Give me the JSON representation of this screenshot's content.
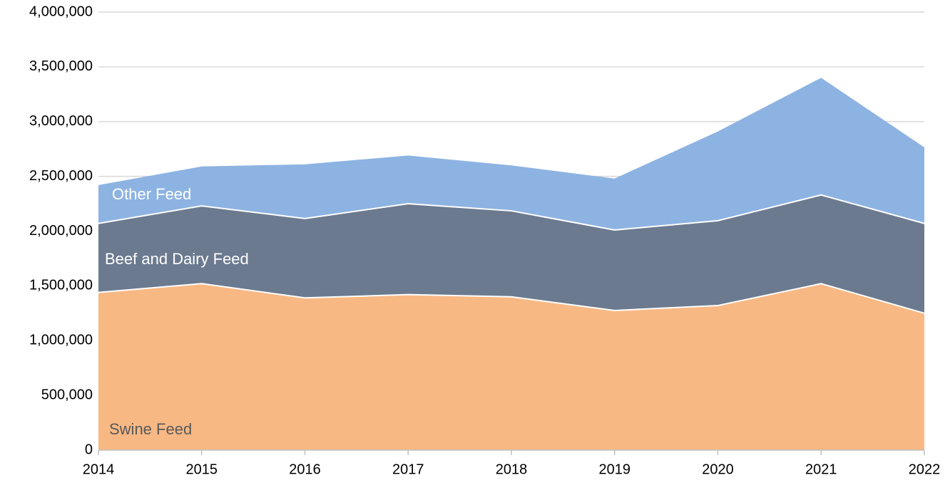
{
  "chart_data": {
    "type": "stacked_area",
    "categories": [
      "2014",
      "2015",
      "2016",
      "2017",
      "2018",
      "2019",
      "2020",
      "2021",
      "2022"
    ],
    "series": [
      {
        "name": "Swine Feed",
        "color": "#f8b884",
        "label_color": "#595959",
        "values": [
          1440000,
          1520000,
          1390000,
          1420000,
          1400000,
          1275000,
          1320000,
          1520000,
          1250000
        ]
      },
      {
        "name": "Beef and Dairy Feed",
        "color": "#6b7a8f",
        "label_color": "#ffffff",
        "values": [
          630000,
          710000,
          725000,
          830000,
          785000,
          735000,
          775000,
          810000,
          820000
        ]
      },
      {
        "name": "Other Feed",
        "color": "#8db3e2",
        "label_color": "#ffffff",
        "values": [
          350000,
          360000,
          495000,
          440000,
          415000,
          470000,
          815000,
          1070000,
          695000
        ]
      }
    ],
    "ylim": [
      0,
      4000000
    ],
    "yticks": [
      {
        "value": 0,
        "label": "0"
      },
      {
        "value": 500000,
        "label": "500,000"
      },
      {
        "value": 1000000,
        "label": "1,000,000"
      },
      {
        "value": 1500000,
        "label": "1,500,000"
      },
      {
        "value": 2000000,
        "label": "2,000,000"
      },
      {
        "value": 2500000,
        "label": "2,500,000"
      },
      {
        "value": 3000000,
        "label": "3,000,000"
      },
      {
        "value": 3500000,
        "label": "3,500,000"
      },
      {
        "value": 4000000,
        "label": "4,000,000"
      }
    ],
    "grid": true
  }
}
